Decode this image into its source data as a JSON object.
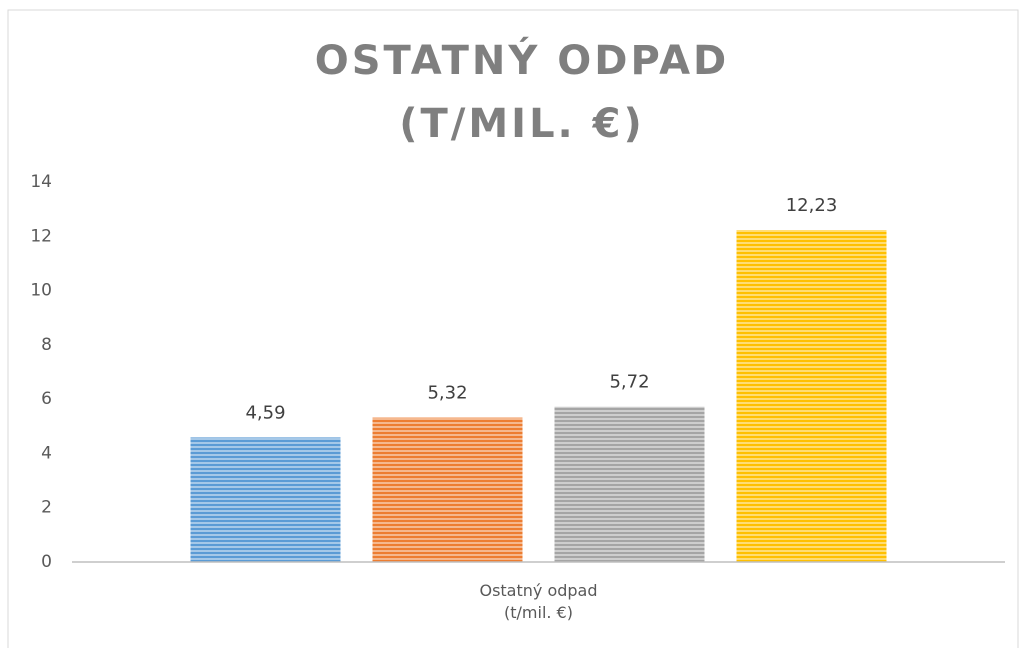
{
  "chart_data": {
    "type": "bar",
    "title": [
      "OSTATNÝ ODPAD",
      "(T/MIL. €)"
    ],
    "categories": [
      "Ostatný odpad (t/mil. €)"
    ],
    "series": [
      {
        "color": "#5b9bd5",
        "values": [
          4.59
        ],
        "value_labels": [
          "4,59"
        ]
      },
      {
        "color": "#ed7d31",
        "values": [
          5.32
        ],
        "value_labels": [
          "5,32"
        ]
      },
      {
        "color": "#a5a5a5",
        "values": [
          5.72
        ],
        "value_labels": [
          "5,72"
        ]
      },
      {
        "color": "#ffc000",
        "values": [
          12.23
        ],
        "value_labels": [
          "12,23"
        ]
      }
    ],
    "ylim": [
      0,
      14
    ],
    "yticks": [
      0,
      2,
      4,
      6,
      8,
      10,
      12,
      14
    ],
    "grid": false
  }
}
